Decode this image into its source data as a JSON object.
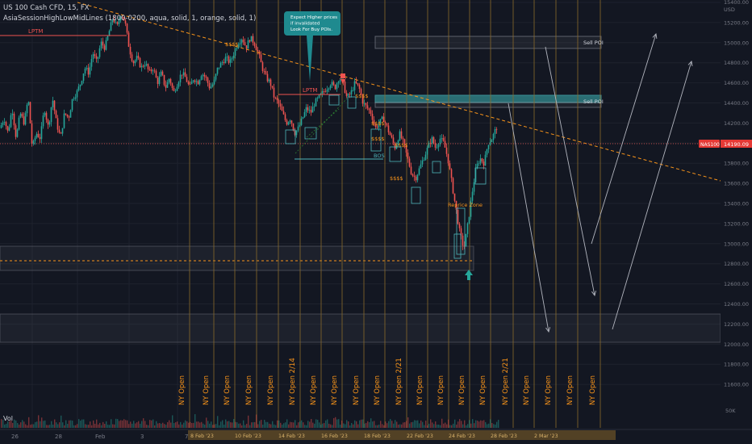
{
  "header": {
    "symbol_line": "US 100 Cash CFD, 15, FX",
    "indicator_line": "AsiaSessionHighLowMidLines (1800-0200, aqua, solid, 1, orange, solid, 1)"
  },
  "colors": {
    "background": "#131722",
    "grid": "#1e222d",
    "up": "#26a69a",
    "down": "#ef5350",
    "orange": "#f7931a",
    "teal_box": "#2a6d73",
    "callout": "#1f8a8f",
    "ny_line": "#8a6a2a",
    "price_tag": "#e53935",
    "text": "#d1d4dc",
    "axis_text": "#787b86"
  },
  "chart_data": {
    "type": "candlestick",
    "symbol": "US 100 Cash CFD",
    "timeframe": "15",
    "exchange": "FX",
    "y_axis": {
      "unit": "USD",
      "ticks": [
        15400,
        15200,
        15000,
        14800,
        14600,
        14400,
        14200,
        14000,
        13800,
        13600,
        13400,
        13200,
        13000,
        12800,
        12600,
        12400,
        12200,
        12000,
        11800,
        11600
      ],
      "tick_labels": [
        "15400.00",
        "15200.00",
        "15000.00",
        "14800.00",
        "14600.00",
        "14400.00",
        "14200.00",
        "14000.00",
        "13800.00",
        "13600.00",
        "13400.00",
        "13200.00",
        "13000.00",
        "12800.00",
        "12600.00",
        "12400.00",
        "12200.00",
        "12000.00",
        "11800.00",
        "11600.00"
      ]
    },
    "x_axis": {
      "ticks": [
        "26",
        "28",
        "Feb",
        "3",
        "7"
      ],
      "session_ticks": [
        "8 Feb '23",
        "10 Feb '23",
        "14 Feb '23",
        "16 Feb '23",
        "18 Feb '23",
        "22 Feb '23",
        "24 Feb '23",
        "28 Feb '23",
        "2 Mar '23"
      ]
    },
    "last_price": {
      "label": "NAS100",
      "value": 14190.09,
      "value_text": "14190.09"
    },
    "close_path": [
      [
        0,
        14150
      ],
      [
        5,
        14250
      ],
      [
        10,
        14100
      ],
      [
        15,
        14350
      ],
      [
        20,
        14050
      ],
      [
        25,
        14300
      ],
      [
        30,
        14200
      ],
      [
        35,
        14450
      ],
      [
        40,
        13950
      ],
      [
        45,
        14100
      ],
      [
        50,
        14050
      ],
      [
        55,
        14350
      ],
      [
        60,
        14150
      ],
      [
        65,
        14450
      ],
      [
        70,
        14200
      ],
      [
        75,
        14050
      ],
      [
        80,
        14300
      ],
      [
        85,
        14250
      ],
      [
        90,
        14450
      ],
      [
        95,
        14500
      ],
      [
        100,
        14600
      ],
      [
        105,
        14750
      ],
      [
        110,
        14700
      ],
      [
        115,
        14900
      ],
      [
        120,
        14800
      ],
      [
        125,
        15000
      ],
      [
        130,
        14950
      ],
      [
        135,
        15100
      ],
      [
        140,
        15250
      ],
      [
        145,
        15150
      ],
      [
        150,
        15300
      ],
      [
        155,
        15200
      ],
      [
        160,
        14950
      ],
      [
        165,
        14800
      ],
      [
        170,
        14850
      ],
      [
        175,
        14750
      ],
      [
        180,
        14800
      ],
      [
        185,
        14700
      ],
      [
        190,
        14750
      ],
      [
        195,
        14600
      ],
      [
        200,
        14700
      ],
      [
        205,
        14550
      ],
      [
        210,
        14650
      ],
      [
        215,
        14500
      ],
      [
        220,
        14600
      ],
      [
        225,
        14700
      ],
      [
        230,
        14650
      ],
      [
        235,
        14550
      ],
      [
        240,
        14650
      ],
      [
        245,
        14600
      ],
      [
        250,
        14700
      ],
      [
        255,
        14650
      ],
      [
        260,
        14550
      ],
      [
        265,
        14600
      ],
      [
        270,
        14750
      ],
      [
        275,
        14800
      ],
      [
        280,
        14850
      ],
      [
        285,
        14800
      ],
      [
        290,
        14900
      ],
      [
        295,
        15000
      ],
      [
        300,
        15050
      ],
      [
        305,
        14950
      ],
      [
        310,
        15050
      ],
      [
        315,
        15000
      ],
      [
        320,
        14900
      ],
      [
        325,
        14750
      ],
      [
        330,
        14650
      ],
      [
        335,
        14600
      ],
      [
        340,
        14450
      ],
      [
        345,
        14400
      ],
      [
        350,
        14300
      ],
      [
        355,
        14200
      ],
      [
        360,
        14250
      ],
      [
        365,
        14100
      ],
      [
        370,
        14150
      ],
      [
        375,
        14250
      ],
      [
        380,
        14350
      ],
      [
        385,
        14300
      ],
      [
        390,
        14400
      ],
      [
        395,
        14450
      ],
      [
        400,
        14500
      ],
      [
        405,
        14550
      ],
      [
        410,
        14600
      ],
      [
        415,
        14550
      ],
      [
        420,
        14650
      ],
      [
        425,
        14600
      ],
      [
        430,
        14450
      ],
      [
        435,
        14500
      ],
      [
        440,
        14600
      ],
      [
        445,
        14550
      ],
      [
        450,
        14400
      ],
      [
        455,
        14350
      ],
      [
        460,
        14300
      ],
      [
        465,
        14150
      ],
      [
        470,
        14200
      ],
      [
        475,
        14250
      ],
      [
        480,
        14150
      ],
      [
        485,
        14050
      ],
      [
        490,
        13950
      ],
      [
        495,
        14100
      ],
      [
        500,
        14000
      ],
      [
        505,
        13850
      ],
      [
        510,
        13700
      ],
      [
        515,
        13650
      ],
      [
        520,
        13750
      ],
      [
        525,
        13850
      ],
      [
        530,
        13950
      ],
      [
        535,
        14050
      ],
      [
        540,
        13950
      ],
      [
        545,
        14050
      ],
      [
        550,
        14000
      ],
      [
        555,
        13850
      ],
      [
        560,
        13600
      ],
      [
        565,
        13350
      ],
      [
        570,
        13100
      ],
      [
        575,
        12950
      ],
      [
        580,
        13200
      ],
      [
        585,
        13500
      ],
      [
        590,
        13750
      ],
      [
        595,
        13850
      ],
      [
        600,
        13800
      ],
      [
        605,
        14000
      ],
      [
        610,
        14050
      ],
      [
        615,
        14150
      ],
      [
        618,
        14190
      ]
    ],
    "levels": [
      {
        "label": "LPTM",
        "value": 15250
      },
      {
        "label": "LPTM",
        "value": 14680
      },
      {
        "label": "Sell POI",
        "value": 15200
      },
      {
        "label": "Sell POI",
        "value": 14600
      },
      {
        "label": "BOS",
        "value": 14040
      }
    ],
    "annotations": {
      "sell_poi_1": "Sell POI",
      "sell_poi_2": "Sell POI",
      "lptm_1": "LPTM",
      "lptm_2": "LPTM",
      "bos": "BOS",
      "ssss": "$$$$",
      "reprice_zone": "Reprice Zone",
      "callout": "Expect Higher prices if invalidated Look For Buy POIs.",
      "ny_open": "NY Open",
      "ny_open_dated_1": "NY Open 2/14",
      "ny_open_dated_2": "NY Open 2/21",
      "ny_open_dated_3": "NY Open 2/21"
    },
    "volume_label": "Vol",
    "volume_scale": "50K"
  }
}
